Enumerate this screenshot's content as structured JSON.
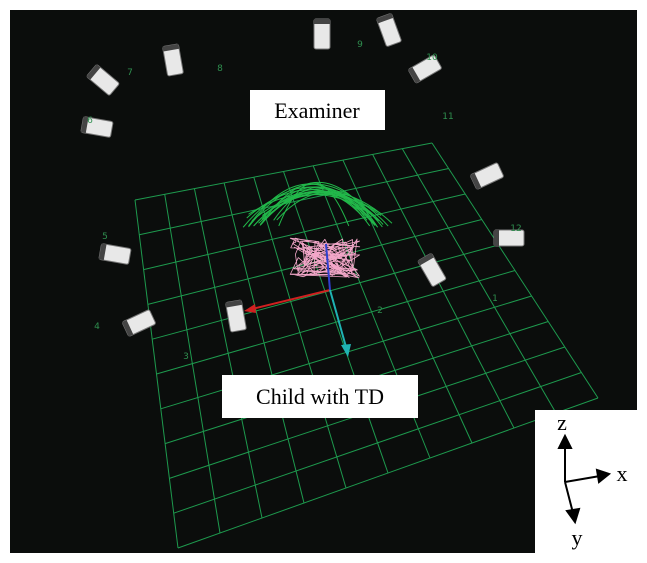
{
  "labels": {
    "examiner": "Examiner",
    "child": "Child with TD"
  },
  "cameras": [
    "1",
    "2",
    "3",
    "4",
    "5",
    "6",
    "7",
    "8",
    "9",
    "10",
    "11",
    "12"
  ],
  "axes": {
    "z": "z",
    "x": "x",
    "y": "y"
  }
}
